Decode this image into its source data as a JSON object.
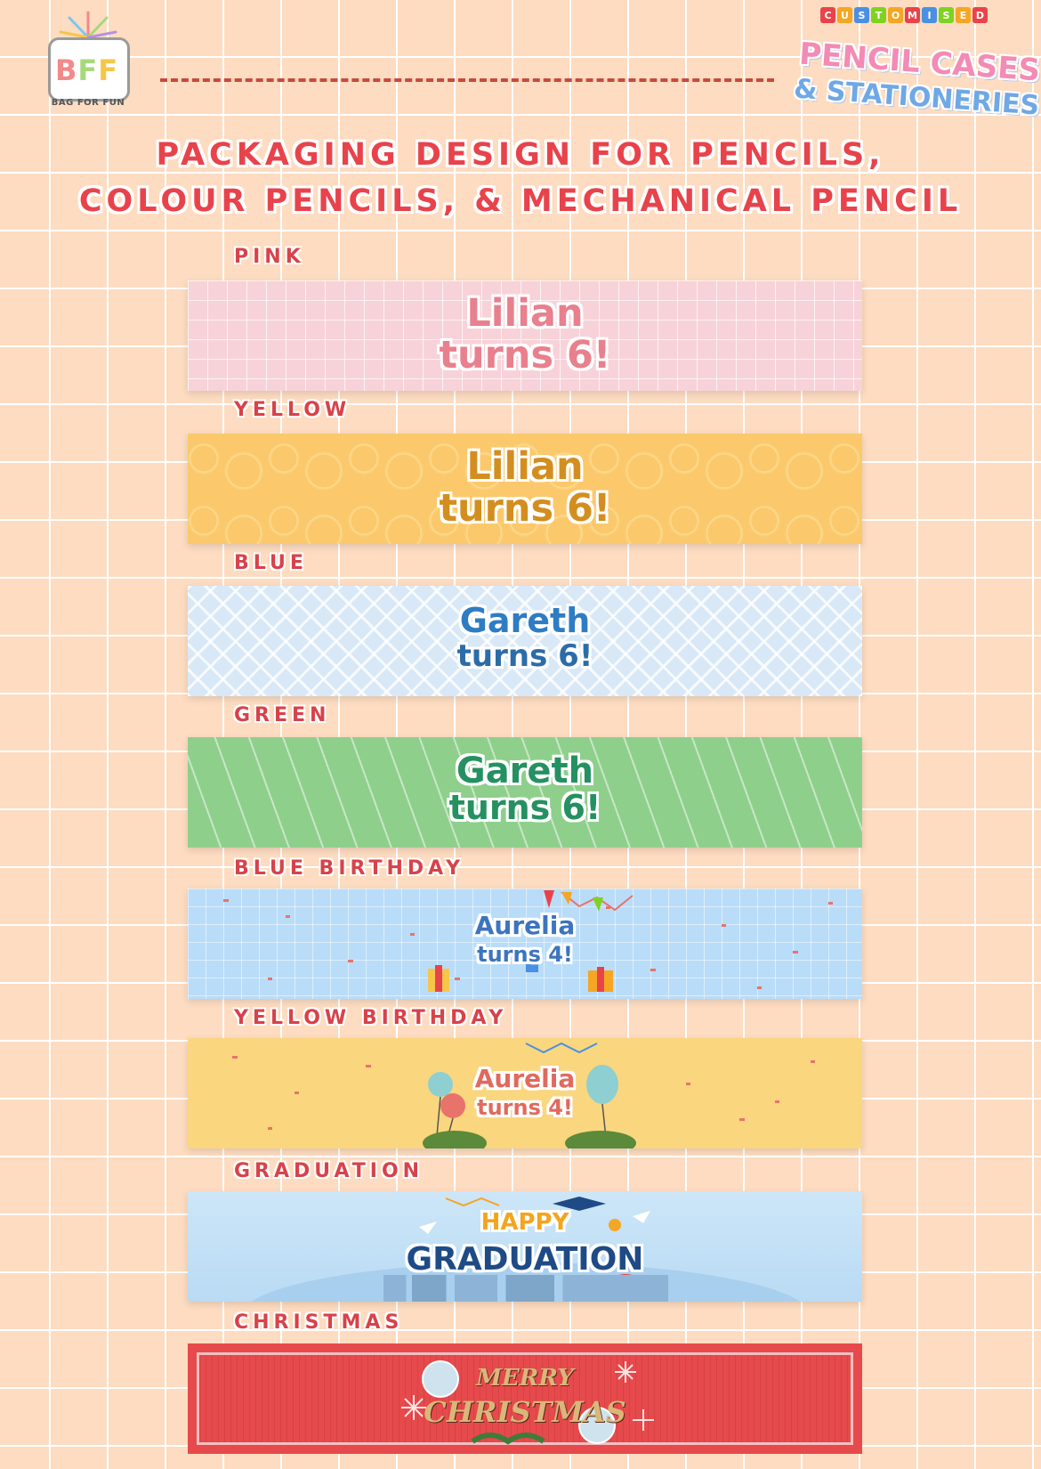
{
  "brand": {
    "logo_text": "BFF",
    "logo_subtitle": "BAG FOR FUN",
    "customised_letters": [
      "C",
      "U",
      "S",
      "T",
      "O",
      "M",
      "I",
      "S",
      "E",
      "D"
    ],
    "customised_colors": [
      "#e8434b",
      "#f5a623",
      "#4a90e2",
      "#7ed321",
      "#f5a623",
      "#e8434b",
      "#4a90e2",
      "#7ed321",
      "#f5a623",
      "#e8434b"
    ],
    "line1": "PENCIL CASES",
    "line2": "& STATIONERIES"
  },
  "title": {
    "line1": "PACKAGING DESIGN FOR PENCILS,",
    "line2": "COLOUR PENCILS, & MECHANICAL PENCIL"
  },
  "designs": [
    {
      "label": "PINK",
      "line1": "Lilian",
      "line2": "turns 6!"
    },
    {
      "label": "YELLOW",
      "line1": "Lilian",
      "line2": "turns 6!"
    },
    {
      "label": "BLUE",
      "line1": "Gareth",
      "line2": "turns 6!"
    },
    {
      "label": "GREEN",
      "line1": "Gareth",
      "line2": "turns 6!"
    },
    {
      "label": "BLUE BIRTHDAY",
      "line1": "Aurelia",
      "line2": "turns 4!"
    },
    {
      "label": "YELLOW BIRTHDAY",
      "line1": "Aurelia",
      "line2": "turns 4!"
    },
    {
      "label": "GRADUATION",
      "line1": "HAPPY",
      "line2": "GRADUATION"
    },
    {
      "label": "CHRISTMAS",
      "line1": "MERRY",
      "line2": "CHRISTMAS"
    }
  ],
  "colors": {
    "background": "#fddcc1",
    "title": "#e8434b"
  }
}
